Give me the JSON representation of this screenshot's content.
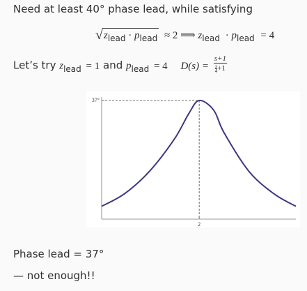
{
  "slide": {
    "line1": "Need at least 40° phase lead, while satisfying",
    "eq1": {
      "z": "z",
      "p": "p",
      "lead": "lead",
      "dot": "·",
      "approx": "≈ 2 ⟹",
      "equals": "= 4"
    },
    "line3": {
      "prefix": "Let’s try ",
      "z": "z",
      "lead": "lead",
      "mid1": " = 1",
      "and": " and ",
      "p": "p",
      "mid2": " = 4",
      "D": "D(s) =",
      "num": "s+1",
      "den_s": "s",
      "den_4": "4",
      "den_rest": "+1"
    },
    "phase_text": "Phase lead = 37°",
    "conclusion": "— not enough!!"
  },
  "chart_data": {
    "type": "line",
    "title": "",
    "xlabel": "",
    "ylabel": "",
    "x_scale": "log",
    "x_tick_labels": [
      "2"
    ],
    "y_tick_labels": [
      "37°"
    ],
    "peak": {
      "x": 2,
      "y": 37
    },
    "series": [
      {
        "color": "#3d3680",
        "x": [
          0.13,
          0.25,
          0.5,
          1,
          1.5,
          2,
          3,
          4,
          8,
          16,
          30
        ],
        "y": [
          4,
          8,
          15,
          25,
          33,
          37,
          34,
          27,
          15,
          8,
          4
        ]
      }
    ],
    "dashed_guides": true
  }
}
